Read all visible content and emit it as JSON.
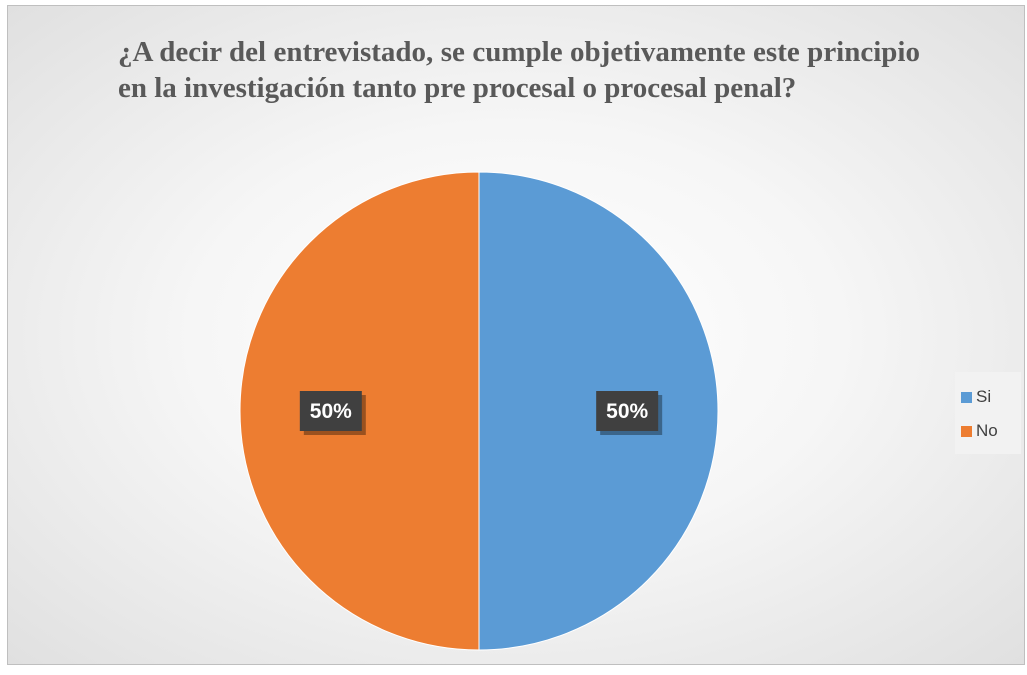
{
  "chart_data": {
    "type": "pie",
    "title": "¿A decir del entrevistado, se cumple objetivamente este principio en la investigación tanto pre procesal o procesal penal?",
    "categories": [
      "Si",
      "No"
    ],
    "values": [
      50,
      50
    ],
    "data_labels": [
      "50%",
      "50%"
    ],
    "colors": [
      "#5b9bd5",
      "#ed7d31"
    ],
    "legend": {
      "position": "right",
      "entries": [
        "Si",
        "No"
      ]
    },
    "label_style": {
      "background": "#404040",
      "text_color": "#ffffff"
    }
  }
}
